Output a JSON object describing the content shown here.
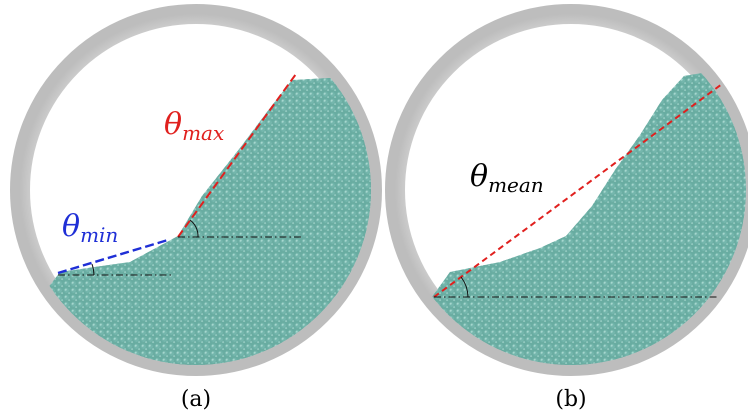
{
  "panels": [
    {
      "id": "a",
      "caption": "(a)",
      "labels": [
        {
          "symbol": "θ",
          "subscript": "max",
          "color": "#e0201e"
        },
        {
          "symbol": "θ",
          "subscript": "min",
          "color": "#1f2fd6"
        }
      ]
    },
    {
      "id": "b",
      "caption": "(b)",
      "labels": [
        {
          "symbol": "θ",
          "subscript": "mean",
          "color": "#000000"
        }
      ]
    }
  ],
  "colors": {
    "drum_ring": "#cfcfcf",
    "drum_ring_dark": "#a9a9a9",
    "particles": "#6fb2a8",
    "particles_dark": "#4f8f86",
    "reference_line": "#111111"
  }
}
